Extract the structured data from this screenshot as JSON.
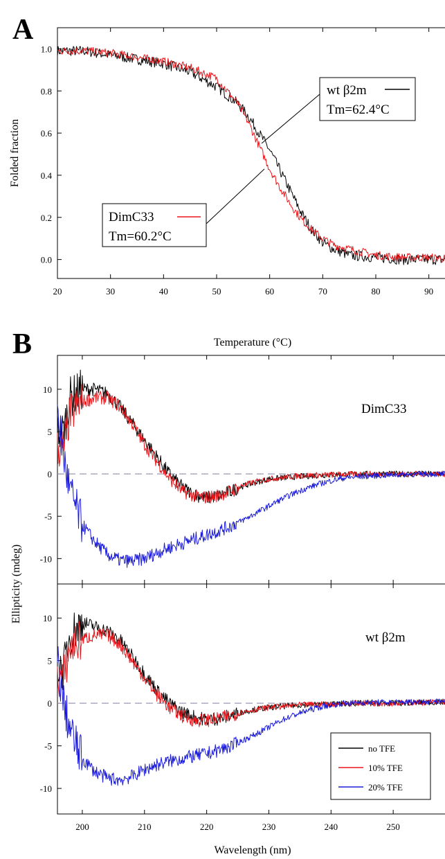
{
  "chart_data": [
    {
      "panel": "A",
      "type": "line",
      "xlabel": "Temperature (°C)",
      "ylabel": "Folded fraction",
      "xlim": [
        20,
        95
      ],
      "ylim": [
        -0.09,
        1.1
      ],
      "x_ticks": [
        20,
        30,
        40,
        50,
        60,
        70,
        80,
        90
      ],
      "y_ticks": [
        0.0,
        0.2,
        0.4,
        0.6,
        0.8,
        1.0
      ],
      "y_tick_labels": [
        "0.0",
        "0.2",
        "0.4",
        "0.6",
        "0.8",
        "1.0"
      ],
      "grid": false,
      "series": [
        {
          "name": "wt β2m",
          "color": "#000000",
          "tm_label": "Tm=62.4°C",
          "x": [
            20,
            25,
            30,
            35,
            40,
            45,
            50,
            52,
            54,
            56,
            58,
            60,
            62,
            64,
            66,
            68,
            70,
            72,
            75,
            80,
            85,
            90,
            95
          ],
          "y": [
            0.99,
            0.99,
            0.97,
            0.95,
            0.93,
            0.89,
            0.82,
            0.78,
            0.74,
            0.68,
            0.6,
            0.52,
            0.42,
            0.32,
            0.22,
            0.14,
            0.08,
            0.05,
            0.02,
            0.01,
            0.0,
            0.0,
            0.0
          ]
        },
        {
          "name": "DimC33",
          "color": "#e8161b",
          "tm_label": "Tm=60.2°C",
          "x": [
            20,
            25,
            30,
            35,
            40,
            45,
            50,
            52,
            54,
            56,
            58,
            60,
            62,
            64,
            66,
            68,
            70,
            72,
            75,
            80,
            85,
            90,
            95
          ],
          "y": [
            0.99,
            0.99,
            0.98,
            0.96,
            0.94,
            0.91,
            0.86,
            0.8,
            0.74,
            0.65,
            0.54,
            0.43,
            0.34,
            0.26,
            0.19,
            0.14,
            0.1,
            0.07,
            0.05,
            0.02,
            0.01,
            0.01,
            0.0
          ]
        }
      ]
    },
    {
      "panel": "B",
      "type": "line",
      "xlabel": "Wavelength (nm)",
      "ylabel": "Ellipticity (mdeg)",
      "xlim": [
        196,
        260
      ],
      "x_ticks": [
        200,
        210,
        220,
        230,
        240,
        250
      ],
      "grid": false,
      "legend_position": "bottom-right",
      "legend": [
        {
          "label": "no TFE",
          "color": "#000000"
        },
        {
          "label": "10% TFE",
          "color": "#e8161b"
        },
        {
          "label": "20% TFE",
          "color": "#1a1adb"
        }
      ],
      "subplots": [
        {
          "label": "DimC33",
          "ylim": [
            -13,
            14
          ],
          "y_ticks": [
            -10,
            -5,
            0,
            5,
            10
          ],
          "series": [
            {
              "name": "no TFE",
              "color": "#000000",
              "x": [
                197,
                198,
                200,
                202,
                204,
                206,
                208,
                210,
                212,
                214,
                216,
                218,
                220,
                222,
                224,
                226,
                228,
                230,
                235,
                240,
                245,
                250,
                255,
                260
              ],
              "y": [
                5,
                9,
                10,
                10,
                9.5,
                8,
                6,
                4,
                2,
                0,
                -1.5,
                -2.5,
                -2.8,
                -2.6,
                -2,
                -1.4,
                -1,
                -0.6,
                -0.3,
                -0.1,
                0,
                0,
                0,
                0
              ]
            },
            {
              "name": "10% TFE",
              "color": "#e8161b",
              "x": [
                197,
                198,
                200,
                202,
                204,
                206,
                208,
                210,
                212,
                214,
                216,
                218,
                220,
                222,
                224,
                226,
                228,
                230,
                235,
                240,
                245,
                250,
                255,
                260
              ],
              "y": [
                3,
                7,
                8.5,
                9,
                9,
                8,
                6,
                3.5,
                1.5,
                -0.5,
                -2,
                -2.6,
                -2.8,
                -2.5,
                -2,
                -1.3,
                -0.9,
                -0.6,
                -0.2,
                -0.1,
                0,
                0,
                0,
                0
              ]
            },
            {
              "name": "20% TFE",
              "color": "#1a1adb",
              "x": [
                196,
                197,
                198,
                199,
                200,
                202,
                204,
                206,
                208,
                210,
                212,
                214,
                216,
                218,
                220,
                222,
                224,
                226,
                228,
                230,
                232,
                234,
                236,
                238,
                240,
                242,
                245,
                250,
                255,
                260
              ],
              "y": [
                8,
                2,
                -2,
                -4,
                -6,
                -8,
                -9.5,
                -10.2,
                -10.3,
                -10,
                -9.3,
                -8.7,
                -8.2,
                -7.7,
                -7.2,
                -6.7,
                -6.1,
                -5.4,
                -4.6,
                -3.8,
                -3,
                -2.3,
                -1.7,
                -1.2,
                -0.8,
                -0.5,
                -0.3,
                -0.1,
                0,
                0
              ]
            }
          ]
        },
        {
          "label": "wt β2m",
          "ylim": [
            -13,
            14
          ],
          "y_ticks": [
            -10,
            -5,
            0,
            5,
            10
          ],
          "series": [
            {
              "name": "no TFE",
              "color": "#000000",
              "x": [
                197,
                198,
                200,
                202,
                204,
                206,
                208,
                210,
                212,
                214,
                216,
                218,
                220,
                222,
                224,
                226,
                228,
                230,
                235,
                240,
                245,
                250,
                255,
                260
              ],
              "y": [
                4,
                8,
                9.5,
                9,
                8.5,
                7.5,
                5.5,
                3.5,
                1.5,
                0,
                -1,
                -1.6,
                -1.9,
                -1.8,
                -1.4,
                -1,
                -0.7,
                -0.5,
                -0.2,
                -0.1,
                0,
                0,
                0.1,
                0.2
              ]
            },
            {
              "name": "10% TFE",
              "color": "#e8161b",
              "x": [
                197,
                198,
                200,
                202,
                204,
                206,
                208,
                210,
                212,
                214,
                216,
                218,
                220,
                222,
                224,
                226,
                228,
                230,
                235,
                240,
                245,
                250,
                255,
                260
              ],
              "y": [
                3,
                6.5,
                7.5,
                8,
                8,
                7,
                5,
                3,
                1,
                -0.5,
                -1.5,
                -2,
                -2,
                -1.8,
                -1.4,
                -1,
                -0.7,
                -0.5,
                -0.2,
                -0.1,
                0,
                0,
                0.1,
                0.2
              ]
            },
            {
              "name": "20% TFE",
              "color": "#1a1adb",
              "x": [
                196,
                197,
                198,
                199,
                200,
                202,
                204,
                206,
                208,
                210,
                212,
                214,
                216,
                218,
                220,
                222,
                224,
                226,
                228,
                230,
                232,
                234,
                236,
                238,
                240,
                242,
                245,
                250,
                255,
                260
              ],
              "y": [
                5,
                0,
                -3,
                -5,
                -6.5,
                -8,
                -8.8,
                -9,
                -8.6,
                -7.8,
                -7.2,
                -6.8,
                -6.5,
                -6.2,
                -5.9,
                -5.5,
                -5,
                -4.3,
                -3.6,
                -2.8,
                -2,
                -1.4,
                -0.9,
                -0.5,
                -0.2,
                0,
                0.1,
                0.1,
                0.2,
                0.3
              ]
            }
          ]
        }
      ]
    }
  ]
}
